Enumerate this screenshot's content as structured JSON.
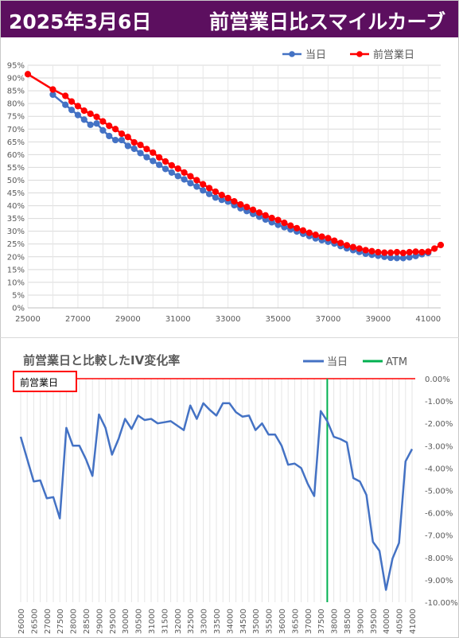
{
  "header": {
    "date": "2025年3月6日",
    "title": "前営業日比スマイルカーブ"
  },
  "colors": {
    "header_bg": "#5c0f5f",
    "today": "#4472c4",
    "prev": "#ff0000",
    "atm": "#00b050",
    "line": "#4472c4"
  },
  "chart_data": [
    {
      "type": "line",
      "legend": [
        "当日",
        "前営業日"
      ],
      "legend_position": "top-right",
      "xlim": [
        25000,
        41500
      ],
      "ylim": [
        0,
        95
      ],
      "x_ticks": [
        "25000",
        "27000",
        "29000",
        "31000",
        "33000",
        "35000",
        "37000",
        "39000",
        "41000"
      ],
      "y_ticks": [
        "0%",
        "5%",
        "10%",
        "15%",
        "20%",
        "25%",
        "30%",
        "35%",
        "40%",
        "45%",
        "50%",
        "55%",
        "60%",
        "65%",
        "70%",
        "75%",
        "80%",
        "85%",
        "90%",
        "95%"
      ],
      "grid": true,
      "series": [
        {
          "name": "当日",
          "x": [
            26000,
            26500,
            26750,
            27000,
            27250,
            27500,
            27750,
            28000,
            28250,
            28500,
            28750,
            29000,
            29250,
            29500,
            29750,
            30000,
            30250,
            30500,
            30750,
            31000,
            31250,
            31500,
            31750,
            32000,
            32250,
            32500,
            32750,
            33000,
            33250,
            33500,
            33750,
            34000,
            34250,
            34500,
            34750,
            35000,
            35250,
            35500,
            35750,
            36000,
            36250,
            36500,
            36750,
            37000,
            37250,
            37500,
            37750,
            38000,
            38250,
            38500,
            38750,
            39000,
            39250,
            39500,
            39750,
            40000,
            40250,
            40500,
            40750,
            41000
          ],
          "y": [
            83.5,
            79.5,
            77.5,
            75.5,
            73.7,
            71.7,
            72.2,
            69.5,
            67.3,
            65.7,
            65.7,
            63.4,
            62.3,
            60.6,
            59.0,
            57.5,
            56.0,
            54.4,
            53.0,
            51.6,
            50.3,
            48.8,
            47.5,
            46.0,
            44.6,
            43.2,
            42.3,
            41.6,
            40.2,
            39.0,
            37.9,
            36.8,
            35.7,
            34.6,
            33.5,
            32.5,
            31.6,
            30.7,
            29.9,
            29.0,
            28.1,
            27.2,
            26.5,
            25.9,
            25.2,
            24.2,
            23.3,
            22.6,
            21.9,
            21.2,
            20.8,
            20.4,
            20.0,
            19.6,
            19.5,
            19.5,
            19.8,
            20.3,
            21.0,
            21.5
          ]
        },
        {
          "name": "前営業日",
          "x": [
            25000,
            26000,
            26500,
            26750,
            27000,
            27250,
            27500,
            27750,
            28000,
            28250,
            28500,
            28750,
            29000,
            29250,
            29500,
            29750,
            30000,
            30250,
            30500,
            30750,
            31000,
            31250,
            31500,
            31750,
            32000,
            32250,
            32500,
            32750,
            33000,
            33250,
            33500,
            33750,
            34000,
            34250,
            34500,
            34750,
            35000,
            35250,
            35500,
            35750,
            36000,
            36250,
            36500,
            36750,
            37000,
            37250,
            37500,
            37750,
            38000,
            38250,
            38500,
            38750,
            39000,
            39250,
            39500,
            39750,
            40000,
            40250,
            40500,
            40750,
            41000,
            41250,
            41500
          ],
          "y": [
            91.5,
            85.5,
            83.0,
            80.8,
            79.0,
            77.2,
            76.0,
            74.8,
            73.0,
            71.3,
            70.0,
            68.2,
            66.9,
            64.8,
            63.8,
            62.2,
            60.8,
            58.9,
            57.3,
            55.8,
            54.5,
            53.0,
            51.5,
            50.0,
            48.4,
            46.9,
            45.5,
            44.2,
            43.0,
            41.7,
            40.5,
            39.5,
            38.4,
            37.3,
            36.2,
            35.2,
            34.4,
            33.3,
            32.2,
            31.2,
            30.3,
            29.4,
            28.6,
            27.9,
            27.3,
            26.3,
            25.4,
            24.5,
            23.8,
            23.2,
            22.6,
            22.2,
            21.8,
            21.6,
            21.6,
            21.8,
            21.5,
            21.8,
            22.0,
            21.8,
            22.0,
            23.2,
            24.6
          ]
        }
      ]
    },
    {
      "type": "line",
      "title": "前営業日と比較したIV変化率",
      "annotation": "前営業日",
      "legend": [
        "当日",
        "ATM"
      ],
      "legend_position": "top-right",
      "atm_x": "37750",
      "ylim": [
        -10,
        0
      ],
      "y_ticks": [
        "0.00%",
        "-1.00%",
        "-2.00%",
        "-3.00%",
        "-4.00%",
        "-5.00%",
        "-6.00%",
        "-7.00%",
        "-8.00%",
        "-9.00%",
        "-10.00%"
      ],
      "categories": [
        "26000",
        "26500",
        "27000",
        "27500",
        "28000",
        "28500",
        "29000",
        "29500",
        "30000",
        "30500",
        "31000",
        "31500",
        "32000",
        "32500",
        "33000",
        "33500",
        "34000",
        "34500",
        "35000",
        "35500",
        "36000",
        "36500",
        "37000",
        "37500",
        "38000",
        "38500",
        "39000",
        "39500",
        "40000",
        "40500",
        "41000"
      ],
      "grid": true,
      "series": [
        {
          "name": "当日",
          "x": [
            26000,
            26250,
            26500,
            26750,
            27000,
            27250,
            27500,
            27750,
            28000,
            28250,
            28500,
            28750,
            29000,
            29250,
            29500,
            29750,
            30000,
            30250,
            30500,
            30750,
            31000,
            31250,
            31500,
            31750,
            32000,
            32250,
            32500,
            32750,
            33000,
            33250,
            33500,
            33750,
            34000,
            34250,
            34500,
            34750,
            35000,
            35250,
            35500,
            35750,
            36000,
            36250,
            36500,
            36750,
            37000,
            37250,
            37500,
            37750,
            38000,
            38250,
            38500,
            38750,
            39000,
            39250,
            39500,
            39750,
            40000,
            40250,
            40500,
            40750,
            41000
          ],
          "y": [
            -2.6,
            -3.6,
            -4.6,
            -4.55,
            -5.35,
            -5.3,
            -6.25,
            -2.2,
            -3.0,
            -3.0,
            -3.6,
            -4.35,
            -1.6,
            -2.2,
            -3.4,
            -2.7,
            -1.8,
            -2.25,
            -1.65,
            -1.85,
            -1.8,
            -2.0,
            -1.95,
            -1.9,
            -2.1,
            -2.3,
            -1.2,
            -1.8,
            -1.1,
            -1.4,
            -1.65,
            -1.1,
            -1.1,
            -1.5,
            -1.7,
            -1.65,
            -2.3,
            -2.0,
            -2.5,
            -2.5,
            -3.0,
            -3.85,
            -3.8,
            -4.0,
            -4.7,
            -5.25,
            -1.45,
            -1.9,
            -2.6,
            -2.7,
            -2.85,
            -4.45,
            -4.6,
            -5.2,
            -7.3,
            -7.7,
            -9.45,
            -8.05,
            -7.35,
            -3.7,
            -3.15
          ]
        }
      ]
    }
  ]
}
